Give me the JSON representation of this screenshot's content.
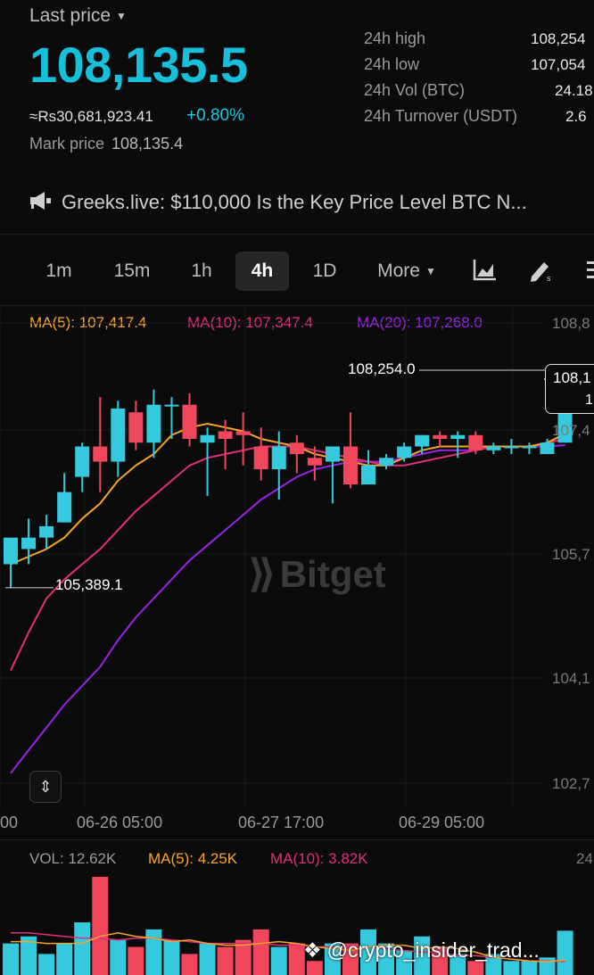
{
  "header": {
    "last_price_label": "Last price",
    "last_price": "108,135.5",
    "fiat_value": "≈Rs30,681,923.41",
    "change_pct": "+0.80%",
    "mark_price_label": "Mark price",
    "mark_price": "108,135.4"
  },
  "stats": {
    "high_label": "24h high",
    "high_value": "108,254",
    "low_label": "24h low",
    "low_value": "107,054",
    "vol_label": "24h Vol (BTC)",
    "vol_value": "24.18",
    "turnover_label": "24h Turnover (USDT)",
    "turnover_value": "2.6"
  },
  "news": {
    "text": "Greeks.live: $110,000 Is the Key Price Level BTC N..."
  },
  "timeframes": [
    "1m",
    "15m",
    "1h",
    "4h",
    "1D",
    "More"
  ],
  "active_timeframe": "4h",
  "ma_legend": {
    "ma5": "MA(5): 107,417.4",
    "ma10": "MA(10): 107,347.4",
    "ma20": "MA(20): 107,268.0"
  },
  "annotations": {
    "high_marker": "108,254.0",
    "low_marker": "105,389.1",
    "tooltip_line1": "108,1",
    "tooltip_line2": "1"
  },
  "y_axis": [
    "108,8",
    "107,4",
    "105,7",
    "104,1",
    "102,7"
  ],
  "x_axis": [
    "00",
    "06-26 05:00",
    "06-27 17:00",
    "06-29 05:00"
  ],
  "watermark": "Bitget",
  "volume_legend": {
    "vol": "VOL: 12.62K",
    "ma5": "MA(5): 4.25K",
    "ma10": "MA(10): 3.82K",
    "axis_top": "24"
  },
  "credit": "@crypto_insider_trad...",
  "colors": {
    "up": "#35c9dd",
    "down": "#f0475d",
    "ma5": "#f6a623",
    "ma10": "#e1307a",
    "ma20": "#9a23e6"
  },
  "chart_data": {
    "type": "candlestick",
    "candles": [
      {
        "o": 105700,
        "h": 106000,
        "l": 105390,
        "c": 106050
      },
      {
        "o": 105900,
        "h": 106300,
        "l": 105700,
        "c": 106050
      },
      {
        "o": 106050,
        "h": 106350,
        "l": 105900,
        "c": 106200
      },
      {
        "o": 106250,
        "h": 106900,
        "l": 106250,
        "c": 106650
      },
      {
        "o": 106850,
        "h": 107300,
        "l": 106650,
        "c": 107250
      },
      {
        "o": 107250,
        "h": 107900,
        "l": 106650,
        "c": 107050
      },
      {
        "o": 107050,
        "h": 107850,
        "l": 106850,
        "c": 107750
      },
      {
        "o": 107700,
        "h": 107850,
        "l": 107200,
        "c": 107300
      },
      {
        "o": 107300,
        "h": 108000,
        "l": 107100,
        "c": 107800
      },
      {
        "o": 107800,
        "h": 107900,
        "l": 107350,
        "c": 107800
      },
      {
        "o": 107800,
        "h": 107950,
        "l": 107250,
        "c": 107350
      },
      {
        "o": 107300,
        "h": 107500,
        "l": 106600,
        "c": 107400
      },
      {
        "o": 107450,
        "h": 107600,
        "l": 106950,
        "c": 107350
      },
      {
        "o": 107450,
        "h": 107700,
        "l": 107000,
        "c": 107400
      },
      {
        "o": 107250,
        "h": 107500,
        "l": 106800,
        "c": 106950
      },
      {
        "o": 106950,
        "h": 107450,
        "l": 106550,
        "c": 107250
      },
      {
        "o": 107300,
        "h": 107400,
        "l": 106900,
        "c": 107150
      },
      {
        "o": 107100,
        "h": 107250,
        "l": 106800,
        "c": 107000
      },
      {
        "o": 107050,
        "h": 107250,
        "l": 106500,
        "c": 107250
      },
      {
        "o": 107250,
        "h": 107700,
        "l": 106700,
        "c": 106750
      },
      {
        "o": 106750,
        "h": 107200,
        "l": 106750,
        "c": 107000
      },
      {
        "o": 107000,
        "h": 107150,
        "l": 106950,
        "c": 107100
      },
      {
        "o": 107100,
        "h": 107300,
        "l": 107050,
        "c": 107250
      },
      {
        "o": 107250,
        "h": 107400,
        "l": 107150,
        "c": 107400
      },
      {
        "o": 107400,
        "h": 107450,
        "l": 107250,
        "c": 107350
      },
      {
        "o": 107350,
        "h": 107450,
        "l": 107100,
        "c": 107400
      },
      {
        "o": 107400,
        "h": 107450,
        "l": 107150,
        "c": 107200
      },
      {
        "o": 107200,
        "h": 107300,
        "l": 107150,
        "c": 107250
      },
      {
        "o": 107250,
        "h": 107350,
        "l": 107150,
        "c": 107250
      },
      {
        "o": 107250,
        "h": 107300,
        "l": 107150,
        "c": 107250
      },
      {
        "o": 107150,
        "h": 107350,
        "l": 107150,
        "c": 107300
      },
      {
        "o": 107300,
        "h": 108254,
        "l": 107300,
        "c": 108135.5
      }
    ],
    "ma5": [
      105700,
      105800,
      105900,
      106050,
      106300,
      106500,
      106800,
      107000,
      107150,
      107400,
      107500,
      107550,
      107500,
      107450,
      107350,
      107300,
      107250,
      107150,
      107100,
      107050,
      107000,
      107000,
      107100,
      107200,
      107250,
      107250,
      107250,
      107250,
      107250,
      107250,
      107300,
      107417
    ],
    "ma10": [
      104300,
      104800,
      105250,
      105500,
      105700,
      105900,
      106150,
      106400,
      106600,
      106800,
      107000,
      107100,
      107150,
      107200,
      107250,
      107250,
      107250,
      107200,
      107150,
      107100,
      107050,
      107000,
      107000,
      107050,
      107100,
      107150,
      107200,
      107250,
      107250,
      107250,
      107300,
      107347
    ],
    "ma20": [
      102950,
      103250,
      103550,
      103850,
      104100,
      104350,
      104700,
      105000,
      105250,
      105500,
      105750,
      105950,
      106150,
      106350,
      106550,
      106700,
      106850,
      106950,
      107000,
      107050,
      107050,
      107050,
      107100,
      107150,
      107200,
      107200,
      107200,
      107250,
      107250,
      107250,
      107250,
      107268
    ],
    "volume": [
      9,
      11,
      6,
      9,
      15,
      28,
      10,
      8,
      13,
      10,
      6,
      9,
      8,
      10,
      13,
      8,
      9,
      4,
      9,
      9,
      13,
      9,
      7,
      11,
      8,
      6,
      4,
      6,
      4,
      4,
      5,
      12.62
    ],
    "volume_ma5": [
      9.5,
      9.5,
      9,
      9,
      9,
      11,
      12,
      11,
      10.5,
      9.5,
      10,
      9,
      8.5,
      8.5,
      9,
      9.5,
      9,
      8,
      7.5,
      7,
      8,
      8.5,
      8.5,
      7.5,
      8,
      7.5,
      6.5,
      5,
      4.5,
      4,
      3.8,
      4.25
    ],
    "volume_ma10": [
      12,
      12,
      11.5,
      11,
      10.5,
      10.5,
      10,
      10.5,
      10.5,
      10,
      9.5,
      9,
      9,
      9,
      9,
      8.5,
      8.5,
      8,
      8,
      8,
      8,
      7.5,
      7,
      6.5,
      6.5,
      5.5,
      5.5,
      5,
      4.5,
      4,
      4,
      3.82
    ],
    "ylim": [
      102500,
      108900
    ]
  }
}
